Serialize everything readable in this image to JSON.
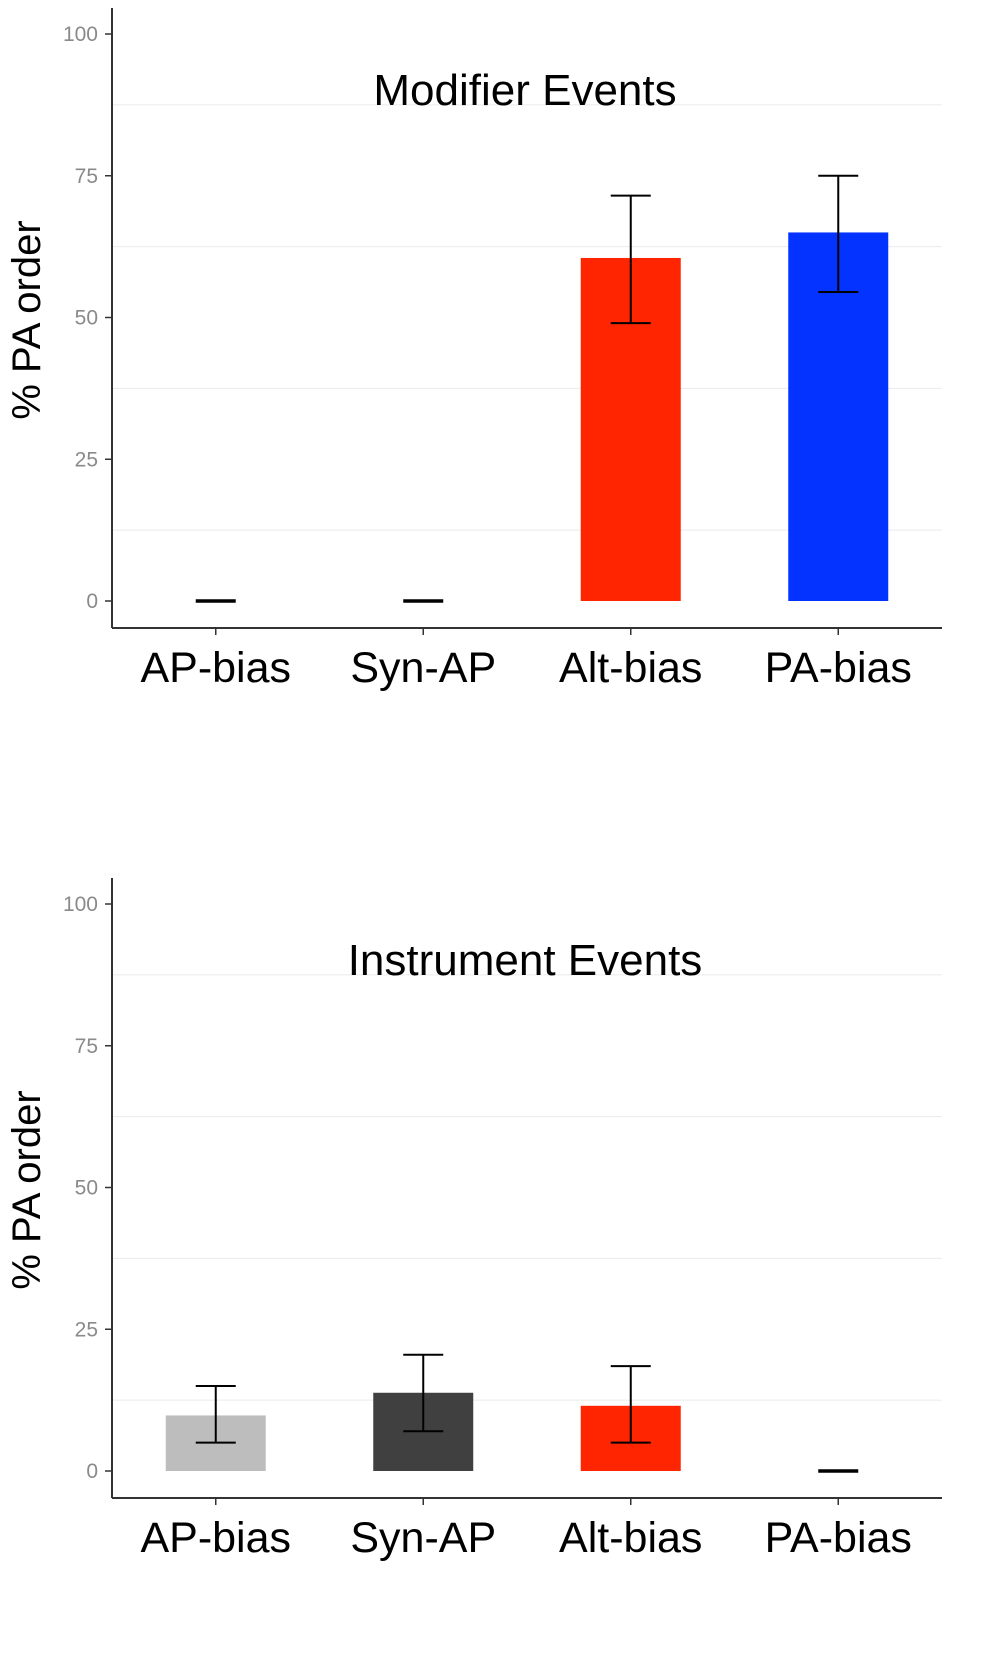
{
  "chart_data": [
    {
      "type": "bar",
      "title": "Modifier Events",
      "ylabel": "% PA order",
      "ylim": [
        0,
        100
      ],
      "yticks": [
        "0",
        "25",
        "50",
        "75",
        "100"
      ],
      "categories": [
        "AP-bias",
        "Syn-AP",
        "Alt-bias",
        "PA-bias"
      ],
      "values": [
        0,
        0,
        60.5,
        65
      ],
      "error_low": [
        0,
        0,
        49,
        54.5
      ],
      "error_high": [
        0,
        0,
        71.5,
        75
      ],
      "colors": [
        "#bdbdbd",
        "#404040",
        "#ff2500",
        "#0433ff"
      ],
      "grid": "horizontal minor lines only",
      "legend": "none"
    },
    {
      "type": "bar",
      "title": "Instrument Events",
      "ylabel": "% PA order",
      "ylim": [
        0,
        100
      ],
      "yticks": [
        "0",
        "25",
        "50",
        "75",
        "100"
      ],
      "categories": [
        "AP-bias",
        "Syn-AP",
        "Alt-bias",
        "PA-bias"
      ],
      "values": [
        9.8,
        13.8,
        11.5,
        0
      ],
      "error_low": [
        5,
        7,
        5,
        0
      ],
      "error_high": [
        15,
        20.5,
        18.5,
        0
      ],
      "colors": [
        "#bdbdbd",
        "#404040",
        "#ff2500",
        "#0433ff"
      ],
      "grid": "horizontal minor lines only",
      "legend": "none"
    }
  ]
}
